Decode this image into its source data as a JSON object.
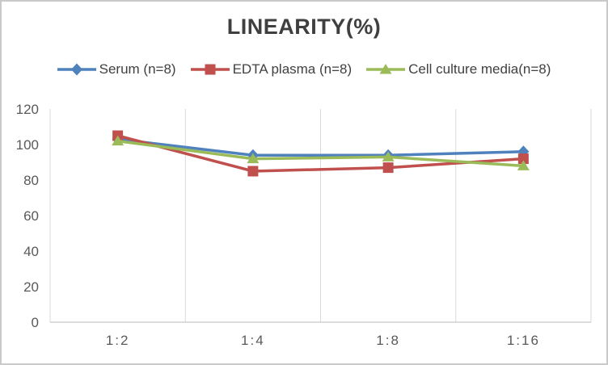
{
  "chart_data": {
    "type": "line",
    "title": "LINEARITY(%)",
    "categories": [
      "1:2",
      "1:4",
      "1:8",
      "1:16"
    ],
    "series": [
      {
        "name": "Serum (n=8)",
        "marker": "diamond",
        "color": "#4F81BD",
        "values": [
          103,
          94,
          94,
          96
        ]
      },
      {
        "name": "EDTA plasma (n=8)",
        "marker": "square",
        "color": "#C0504D",
        "values": [
          105,
          85,
          87,
          92
        ]
      },
      {
        "name": "Cell culture media(n=8)",
        "marker": "triangle",
        "color": "#9BBB59",
        "values": [
          102,
          92,
          93,
          88
        ]
      }
    ],
    "xlabel": "",
    "ylabel": "",
    "ylim": [
      0,
      120
    ],
    "ytick_step": 20,
    "grid": "vertical-only",
    "legend_position": "top"
  },
  "style": {
    "title_color": "#3F3F3F",
    "legend_text_color": "#404040",
    "tick_label_color": "#595959",
    "gridline_color": "#D9D9D9",
    "axis_line_color": "#C6C6C6",
    "background_color": "#FFFFFF",
    "frame_border_color": "#C9C9C9"
  }
}
